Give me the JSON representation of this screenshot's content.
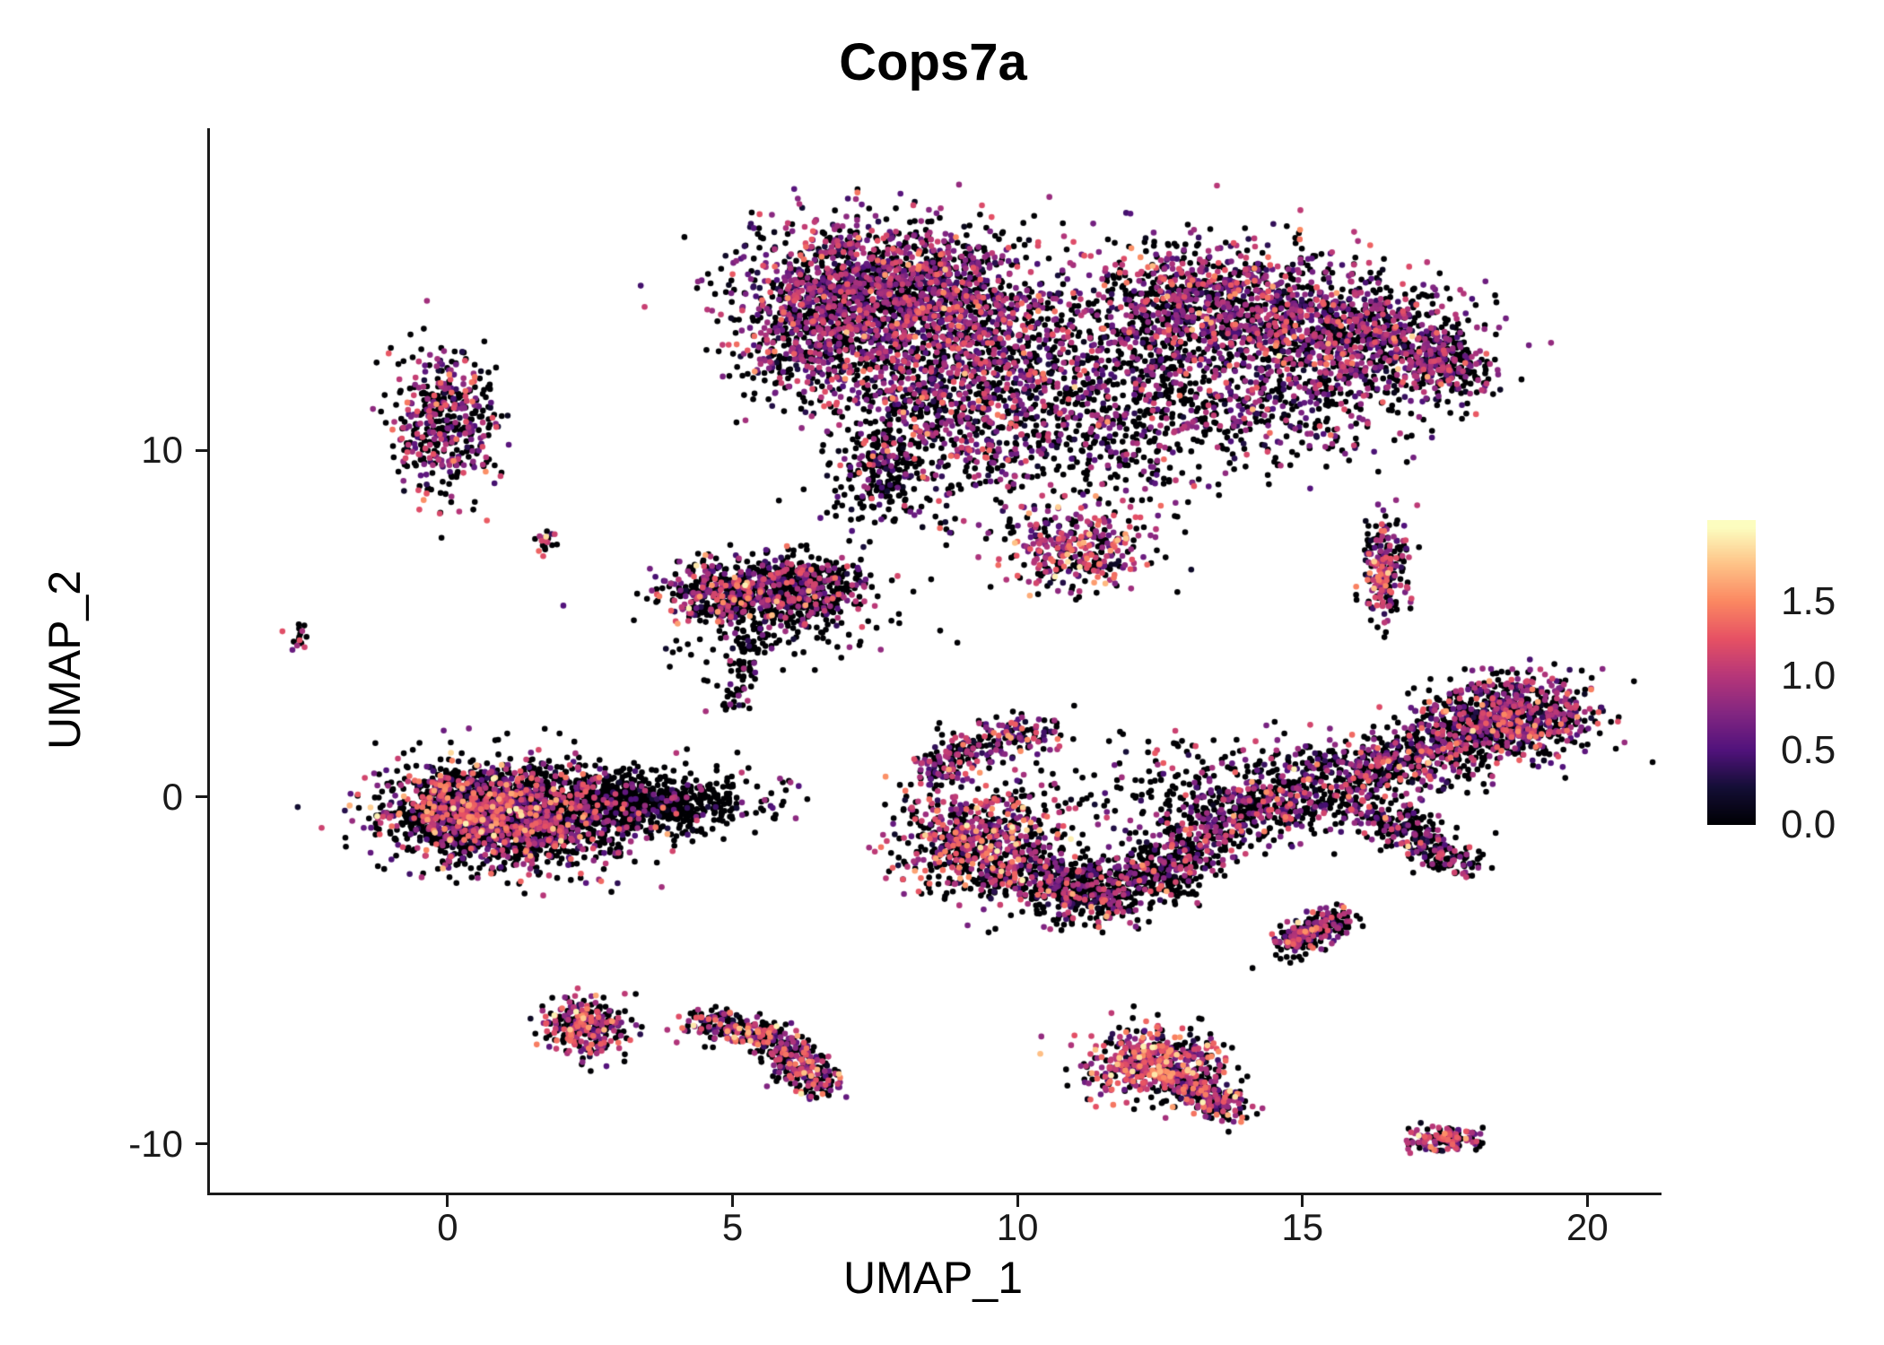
{
  "chart_data": {
    "type": "scatter",
    "title": "Cops7a",
    "xlabel": "UMAP_1",
    "ylabel": "UMAP_2",
    "xlim": [
      -4.17,
      21.3
    ],
    "ylim": [
      -11.41,
      19.3
    ],
    "x_ticks": [
      0,
      5,
      10,
      15,
      20
    ],
    "y_ticks": [
      -10,
      0,
      10
    ],
    "grid": false,
    "background": "#ffffff",
    "point_radius_px": 3.3,
    "legend_position": "right",
    "color_scale": {
      "name": "magma",
      "vmin": 0.0,
      "vmax": 2.0,
      "stops": [
        {
          "t": 0.0,
          "c": "#000004"
        },
        {
          "t": 0.125,
          "c": "#140e36"
        },
        {
          "t": 0.25,
          "c": "#51127c"
        },
        {
          "t": 0.375,
          "c": "#832681"
        },
        {
          "t": 0.5,
          "c": "#b63679"
        },
        {
          "t": 0.625,
          "c": "#e65164"
        },
        {
          "t": 0.75,
          "c": "#fb8761"
        },
        {
          "t": 0.875,
          "c": "#fec287"
        },
        {
          "t": 1.0,
          "c": "#fcfdbf"
        }
      ]
    },
    "colorbar": {
      "bar_vmin": 0.0,
      "bar_vmax": 2.05,
      "ticks": [
        {
          "label": "0.0",
          "value": 0.0
        },
        {
          "label": "0.5",
          "value": 0.5
        },
        {
          "label": "1.0",
          "value": 1.0
        },
        {
          "label": "1.5",
          "value": 1.5
        }
      ]
    },
    "seed": 1234567,
    "clusters": [
      {
        "name": "top-left-lobe-core",
        "kind": "gauss",
        "c": [
          7.6,
          14.7
        ],
        "sd": [
          1.15,
          1.0
        ],
        "n": 1400,
        "zero": 0.42,
        "mean": 0.78,
        "esd": 0.33
      },
      {
        "name": "top-left-lobe-lower",
        "kind": "gauss",
        "c": [
          9.2,
          13.0
        ],
        "sd": [
          1.2,
          1.3
        ],
        "n": 1100,
        "zero": 0.46,
        "mean": 0.78,
        "esd": 0.33
      },
      {
        "name": "top-left-tip",
        "kind": "gauss",
        "c": [
          6.3,
          13.2
        ],
        "sd": [
          0.65,
          1.05
        ],
        "n": 450,
        "zero": 0.52,
        "mean": 0.72,
        "esd": 0.3
      },
      {
        "name": "top-under-sparse",
        "kind": "gauss",
        "c": [
          8.7,
          10.6
        ],
        "sd": [
          1.05,
          1.25
        ],
        "n": 520,
        "zero": 0.55,
        "mean": 0.8,
        "esd": 0.35
      },
      {
        "name": "top-black-tail",
        "kind": "gauss",
        "c": [
          7.6,
          9.3
        ],
        "sd": [
          0.35,
          0.85
        ],
        "n": 180,
        "zero": 0.82,
        "mean": 0.5,
        "esd": 0.25
      },
      {
        "name": "warm-clump-mid",
        "kind": "gauss",
        "c": [
          11.0,
          7.1
        ],
        "sd": [
          0.7,
          0.6
        ],
        "n": 330,
        "zero": 0.35,
        "mean": 1.0,
        "esd": 0.38
      },
      {
        "name": "lobes-connector",
        "kind": "gauss",
        "c": [
          11.4,
          10.8
        ],
        "sd": [
          0.95,
          1.5
        ],
        "n": 380,
        "zero": 0.62,
        "mean": 0.72,
        "esd": 0.3
      },
      {
        "name": "top-right-core",
        "kind": "gauss",
        "c": [
          13.6,
          14.2
        ],
        "sd": [
          1.15,
          0.95
        ],
        "n": 1000,
        "zero": 0.45,
        "mean": 0.8,
        "esd": 0.33
      },
      {
        "name": "top-right-east",
        "kind": "gauss",
        "c": [
          15.8,
          13.2
        ],
        "sd": [
          1.1,
          0.85
        ],
        "n": 800,
        "zero": 0.45,
        "mean": 0.8,
        "esd": 0.33
      },
      {
        "name": "top-right-tip",
        "kind": "strip",
        "path": [
          [
            16.9,
            13.2
          ],
          [
            17.9,
            12.1
          ]
        ],
        "jit": 0.38,
        "n": 300,
        "zero": 0.46,
        "mean": 0.8,
        "esd": 0.3
      },
      {
        "name": "top-right-under",
        "kind": "gauss",
        "c": [
          14.3,
          11.4
        ],
        "sd": [
          1.45,
          0.95
        ],
        "n": 460,
        "zero": 0.56,
        "mean": 0.75,
        "esd": 0.3
      },
      {
        "name": "mid-lobes-sparse",
        "kind": "gauss",
        "c": [
          12.4,
          12.8
        ],
        "sd": [
          0.6,
          1.2
        ],
        "n": 200,
        "zero": 0.6,
        "mean": 0.72,
        "esd": 0.3
      },
      {
        "name": "left-small-vertical",
        "kind": "gauss",
        "c": [
          0.0,
          10.8
        ],
        "sd": [
          0.42,
          1.05
        ],
        "n": 430,
        "zero": 0.5,
        "mean": 0.78,
        "esd": 0.32
      },
      {
        "name": "tiny-far-left",
        "kind": "gauss",
        "c": [
          -2.65,
          4.6
        ],
        "sd": [
          0.09,
          0.2
        ],
        "n": 16,
        "zero": 0.5,
        "mean": 0.9,
        "esd": 0.3
      },
      {
        "name": "tiny-mid-left",
        "kind": "gauss",
        "c": [
          1.75,
          7.4
        ],
        "sd": [
          0.13,
          0.16
        ],
        "n": 18,
        "zero": 0.55,
        "mean": 1.1,
        "esd": 0.4
      },
      {
        "name": "mid-left-blob",
        "kind": "gauss",
        "c": [
          4.9,
          5.9
        ],
        "sd": [
          0.58,
          0.48
        ],
        "n": 430,
        "zero": 0.6,
        "mean": 0.9,
        "esd": 0.4
      },
      {
        "name": "mid-right-blob",
        "kind": "gauss",
        "c": [
          6.3,
          6.0
        ],
        "sd": [
          0.5,
          0.46
        ],
        "n": 430,
        "zero": 0.66,
        "mean": 0.8,
        "esd": 0.33
      },
      {
        "name": "mid-tail-down",
        "kind": "strip",
        "path": [
          [
            5.4,
            4.9
          ],
          [
            5.1,
            3.5
          ],
          [
            4.9,
            2.7
          ]
        ],
        "jit": 0.18,
        "n": 90,
        "zero": 0.8,
        "mean": 0.6,
        "esd": 0.25
      },
      {
        "name": "mid-halo",
        "kind": "gauss",
        "c": [
          5.6,
          5.4
        ],
        "sd": [
          1.05,
          0.85
        ],
        "n": 150,
        "zero": 0.72,
        "mean": 0.7,
        "esd": 0.3
      },
      {
        "name": "west-big-core",
        "kind": "gauss",
        "c": [
          1.1,
          -0.5
        ],
        "sd": [
          1.05,
          0.75
        ],
        "n": 2000,
        "zero": 0.62,
        "mean": 0.85,
        "esd": 0.42
      },
      {
        "name": "west-big-tail",
        "kind": "gauss",
        "c": [
          3.6,
          -0.15
        ],
        "sd": [
          0.95,
          0.42
        ],
        "n": 700,
        "zero": 0.86,
        "mean": 0.6,
        "esd": 0.3
      },
      {
        "name": "west-big-left-edge",
        "kind": "gauss",
        "c": [
          0.25,
          -0.35
        ],
        "sd": [
          0.5,
          0.55
        ],
        "n": 420,
        "zero": 0.5,
        "mean": 0.92,
        "esd": 0.45
      },
      {
        "name": "center-arm-up",
        "kind": "strip",
        "path": [
          [
            8.4,
            0.5
          ],
          [
            9.5,
            1.7
          ],
          [
            10.4,
            1.9
          ]
        ],
        "jit": 0.3,
        "n": 260,
        "zero": 0.52,
        "mean": 0.8,
        "esd": 0.33
      },
      {
        "name": "center-west-dense",
        "kind": "gauss",
        "c": [
          9.3,
          -1.3
        ],
        "sd": [
          0.7,
          0.8
        ],
        "n": 700,
        "zero": 0.5,
        "mean": 0.95,
        "esd": 0.42
      },
      {
        "name": "center-band",
        "kind": "strip",
        "path": [
          [
            10.2,
            -2.1
          ],
          [
            11.2,
            -2.9
          ],
          [
            12.3,
            -2.3
          ],
          [
            13.2,
            -1.3
          ]
        ],
        "jit": 0.45,
        "n": 900,
        "zero": 0.66,
        "mean": 0.8,
        "esd": 0.35
      },
      {
        "name": "east-band",
        "kind": "strip",
        "path": [
          [
            13.2,
            -0.9
          ],
          [
            15.0,
            0.1
          ],
          [
            16.6,
            0.9
          ],
          [
            18.2,
            2.0
          ],
          [
            19.4,
            2.8
          ]
        ],
        "jit": 0.52,
        "n": 1300,
        "zero": 0.56,
        "mean": 0.8,
        "esd": 0.35
      },
      {
        "name": "east-dense-top",
        "kind": "gauss",
        "c": [
          18.6,
          2.3
        ],
        "sd": [
          0.85,
          0.6
        ],
        "n": 500,
        "zero": 0.46,
        "mean": 0.85,
        "esd": 0.35
      },
      {
        "name": "east-branch-down",
        "kind": "strip",
        "path": [
          [
            16.2,
            -0.4
          ],
          [
            17.2,
            -1.3
          ],
          [
            17.7,
            -1.9
          ]
        ],
        "jit": 0.3,
        "n": 280,
        "zero": 0.6,
        "mean": 0.8,
        "esd": 0.32
      },
      {
        "name": "center-halo",
        "kind": "gauss",
        "c": [
          13.5,
          0.5
        ],
        "sd": [
          1.6,
          0.75
        ],
        "n": 260,
        "zero": 0.72,
        "mean": 0.72,
        "esd": 0.3
      },
      {
        "name": "east-small-vertical",
        "kind": "gauss",
        "c": [
          16.45,
          6.6
        ],
        "sd": [
          0.2,
          0.8
        ],
        "n": 230,
        "zero": 0.45,
        "mean": 0.9,
        "esd": 0.4
      },
      {
        "name": "southeast-mid-small",
        "kind": "strip",
        "path": [
          [
            14.7,
            -4.3
          ],
          [
            15.6,
            -3.5
          ]
        ],
        "jit": 0.22,
        "n": 240,
        "zero": 0.55,
        "mean": 0.85,
        "esd": 0.35
      },
      {
        "name": "south-small-left",
        "kind": "gauss",
        "c": [
          2.4,
          -6.6
        ],
        "sd": [
          0.35,
          0.42
        ],
        "n": 300,
        "zero": 0.4,
        "mean": 1.0,
        "esd": 0.38
      },
      {
        "name": "south-arc",
        "kind": "strip",
        "path": [
          [
            4.4,
            -6.5
          ],
          [
            5.5,
            -6.8
          ],
          [
            6.2,
            -7.5
          ],
          [
            6.5,
            -8.5
          ]
        ],
        "jit": 0.24,
        "n": 480,
        "zero": 0.5,
        "mean": 0.95,
        "esd": 0.4
      },
      {
        "name": "south-middle-core",
        "kind": "gauss",
        "c": [
          12.4,
          -7.7
        ],
        "sd": [
          0.58,
          0.5
        ],
        "n": 550,
        "zero": 0.35,
        "mean": 1.05,
        "esd": 0.4
      },
      {
        "name": "south-middle-tail",
        "kind": "strip",
        "path": [
          [
            13.0,
            -8.3
          ],
          [
            13.8,
            -9.0
          ]
        ],
        "jit": 0.25,
        "n": 200,
        "zero": 0.5,
        "mean": 0.9,
        "esd": 0.38
      },
      {
        "name": "southeast-small",
        "kind": "gauss",
        "c": [
          17.5,
          -9.9
        ],
        "sd": [
          0.3,
          0.17
        ],
        "n": 130,
        "zero": 0.45,
        "mean": 1.0,
        "esd": 0.35
      }
    ]
  }
}
